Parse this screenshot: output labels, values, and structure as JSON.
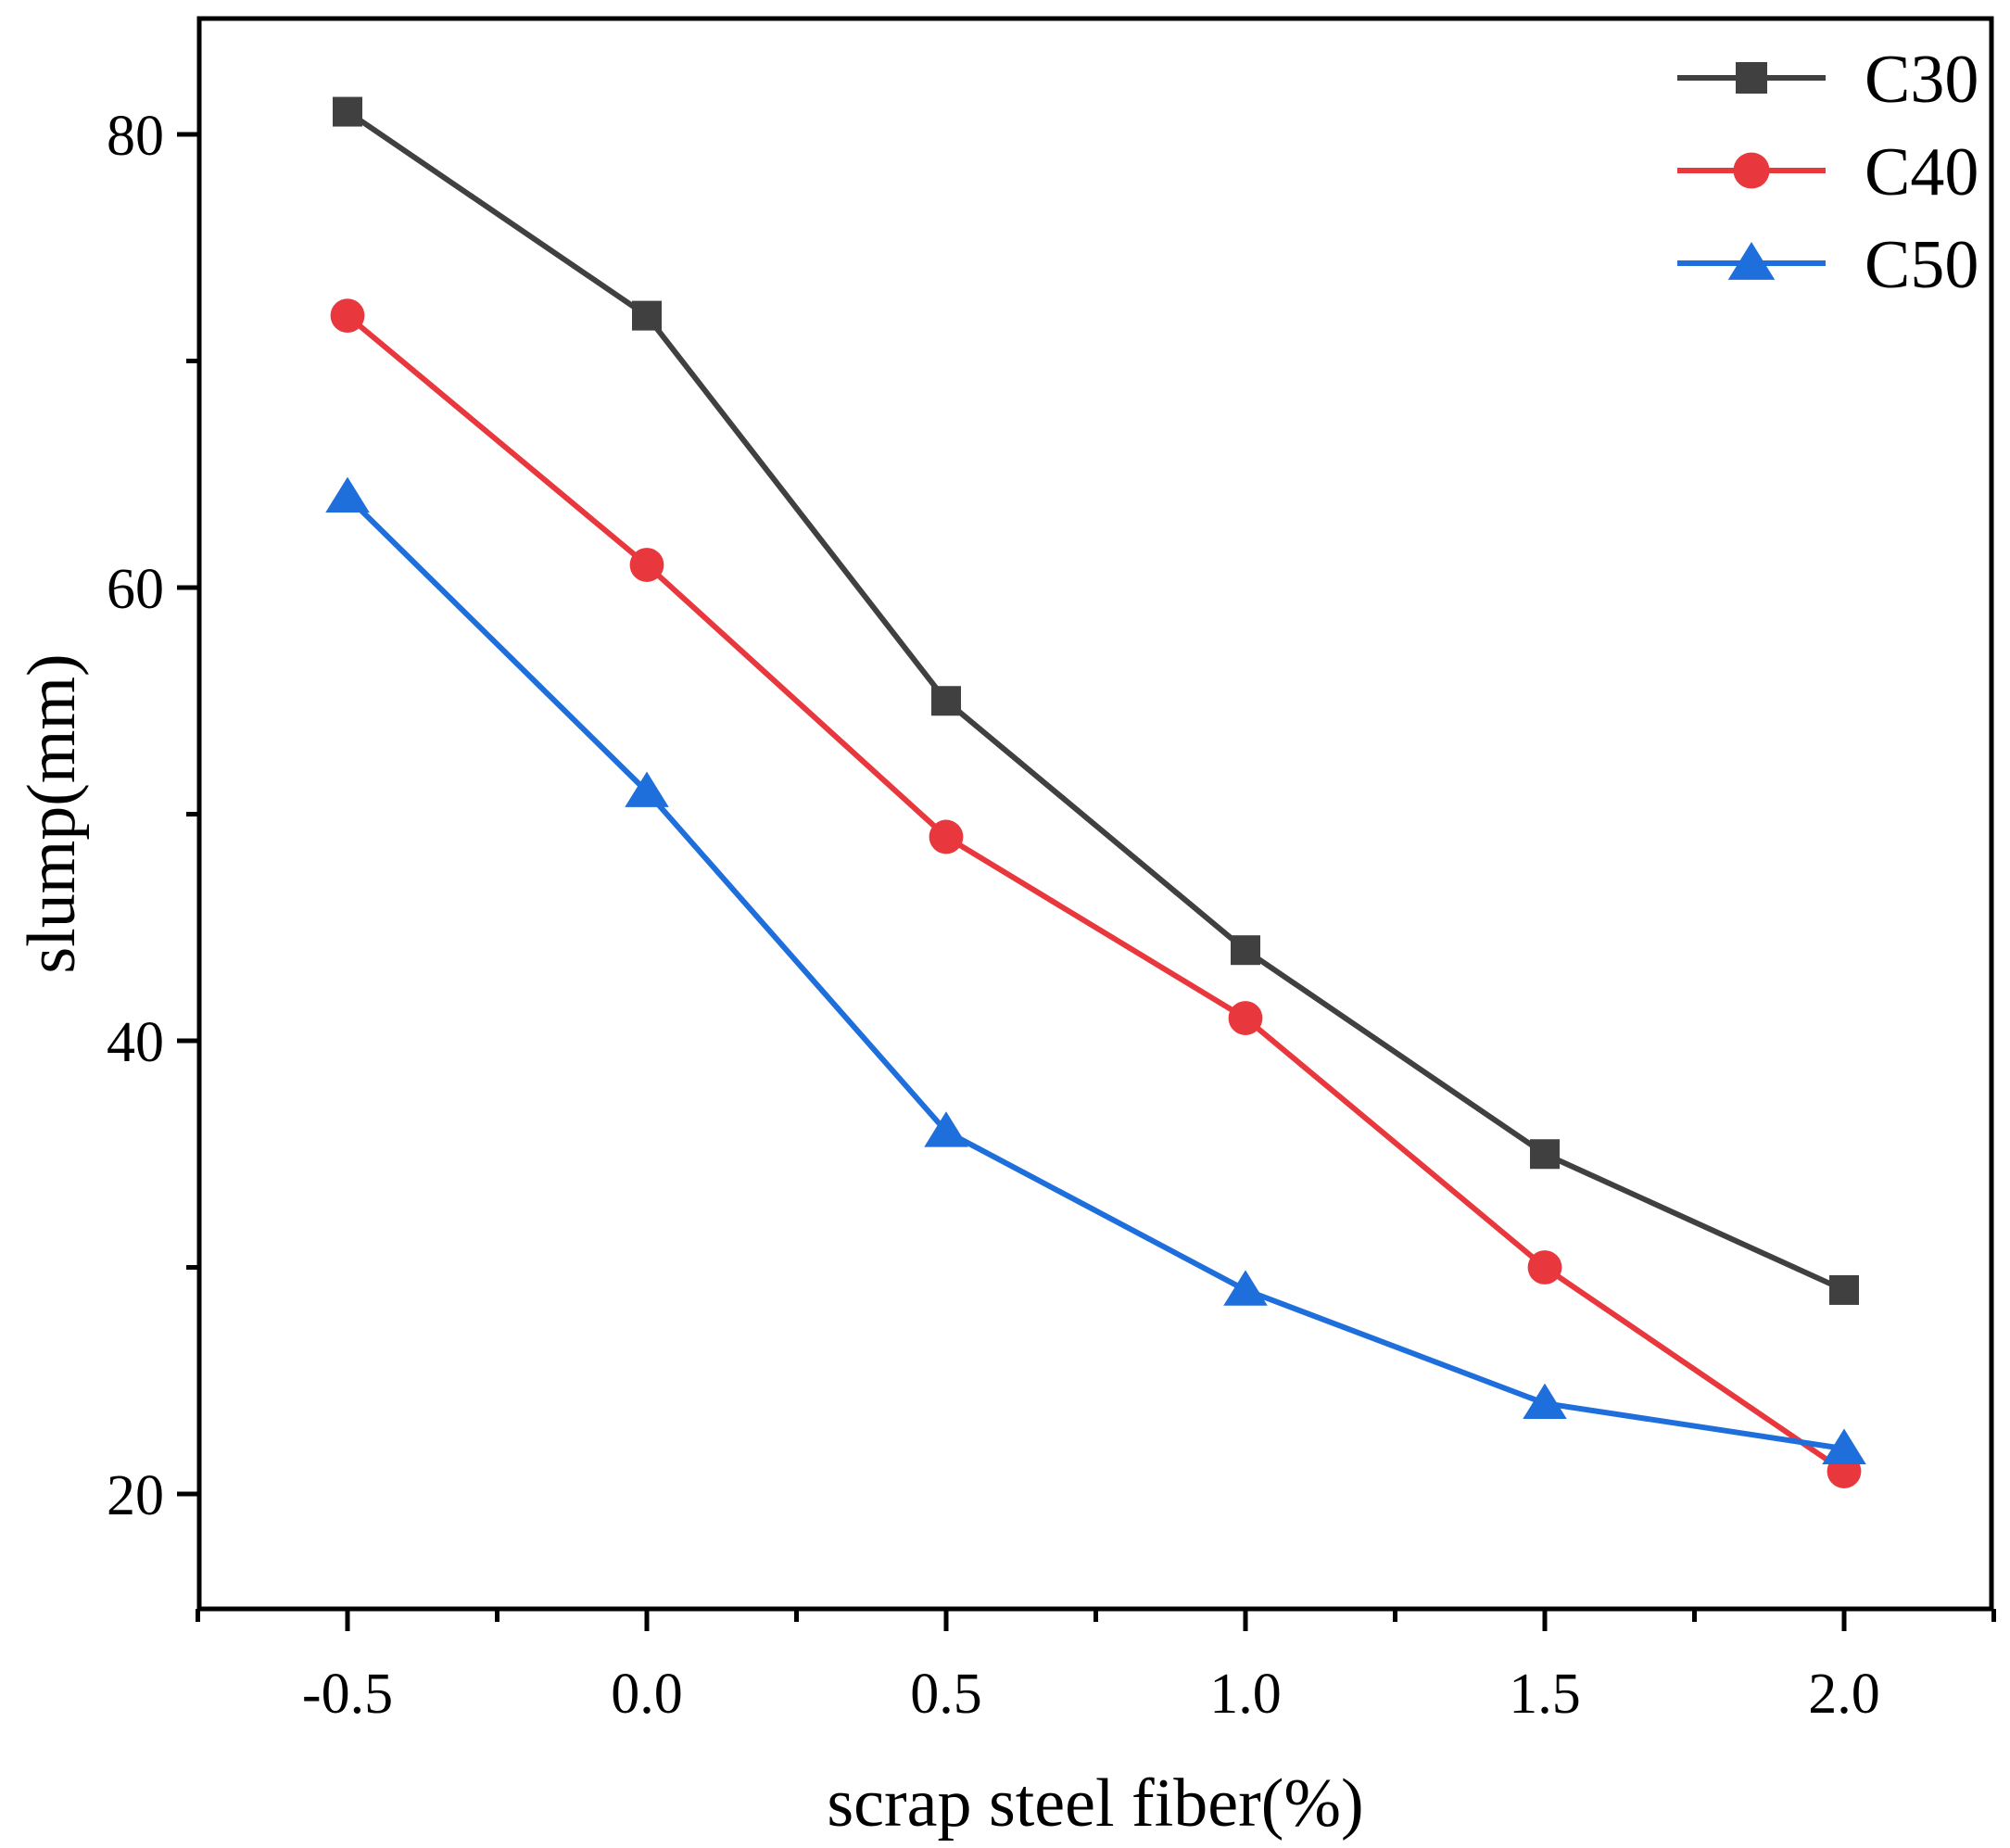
{
  "chart_data": {
    "type": "line",
    "title": "",
    "xlabel": "scrap steel fiber(%)",
    "ylabel": "slump(mm)",
    "x": [
      -0.5,
      0.0,
      0.5,
      1.0,
      1.5,
      2.0
    ],
    "x_tick_labels": [
      "-0.5",
      "0.0",
      "0.5",
      "1.0",
      "1.5",
      "2.0"
    ],
    "x_minor_ticks": [
      -0.75,
      -0.25,
      0.25,
      0.75,
      1.25,
      1.75,
      2.25
    ],
    "y_tick_labels": [
      "20",
      "40",
      "60",
      "80"
    ],
    "y_ticks": [
      20,
      40,
      60,
      80
    ],
    "y_minor_ticks": [
      30,
      50,
      70
    ],
    "xlim": [
      -0.75,
      2.25
    ],
    "ylim": [
      15,
      85
    ],
    "grid": false,
    "legend_position": "top-right",
    "series": [
      {
        "name": "C30",
        "marker": "square",
        "color": "#404040",
        "values": [
          81,
          72,
          55,
          44,
          35,
          29
        ]
      },
      {
        "name": "C40",
        "marker": "circle",
        "color": "#e8383d",
        "values": [
          72,
          61,
          49,
          41,
          30,
          21
        ]
      },
      {
        "name": "C50",
        "marker": "triangle",
        "color": "#1e6fdc",
        "values": [
          64,
          51,
          36,
          29,
          24,
          22
        ]
      }
    ]
  }
}
